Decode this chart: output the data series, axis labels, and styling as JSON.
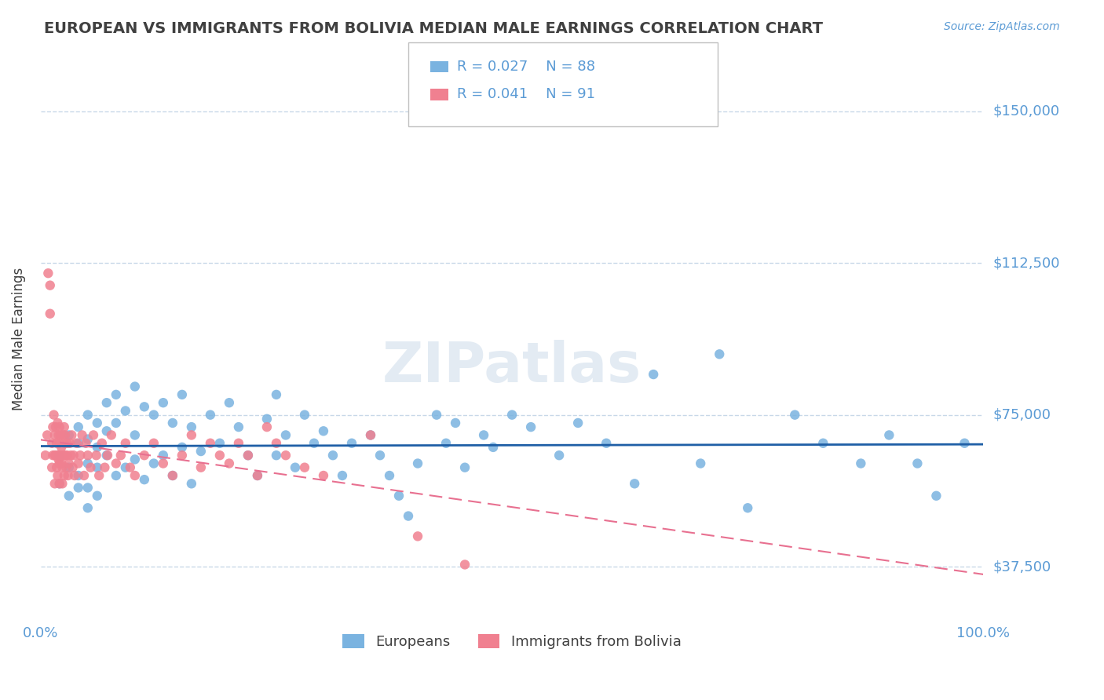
{
  "title": "EUROPEAN VS IMMIGRANTS FROM BOLIVIA MEDIAN MALE EARNINGS CORRELATION CHART",
  "source": "Source: ZipAtlas.com",
  "xlabel": "",
  "ylabel": "Median Male Earnings",
  "xlim": [
    0.0,
    1.0
  ],
  "ylim": [
    25000,
    162500
  ],
  "yticks": [
    37500,
    75000,
    112500,
    150000
  ],
  "ytick_labels": [
    "$37,500",
    "$75,000",
    "$112,500",
    "$150,000"
  ],
  "xtick_labels": [
    "0.0%",
    "100.0%"
  ],
  "background_color": "#ffffff",
  "grid_color": "#c8d8e8",
  "blue_color": "#5b9bd5",
  "pink_color": "#f4a0b0",
  "blue_scatter_color": "#7ab3e0",
  "pink_scatter_color": "#f08090",
  "legend_R1": "R = 0.027",
  "legend_N1": "N = 88",
  "legend_R2": "R = 0.041",
  "legend_N2": "N = 91",
  "legend_label1": "Europeans",
  "legend_label2": "Immigrants from Bolivia",
  "title_color": "#404040",
  "axis_label_color": "#5b9bd5",
  "watermark": "ZIPatlas",
  "europeans_x": [
    0.02,
    0.02,
    0.03,
    0.03,
    0.03,
    0.04,
    0.04,
    0.04,
    0.04,
    0.05,
    0.05,
    0.05,
    0.05,
    0.05,
    0.06,
    0.06,
    0.06,
    0.06,
    0.07,
    0.07,
    0.07,
    0.08,
    0.08,
    0.08,
    0.09,
    0.09,
    0.1,
    0.1,
    0.1,
    0.11,
    0.11,
    0.12,
    0.12,
    0.13,
    0.13,
    0.14,
    0.14,
    0.15,
    0.15,
    0.16,
    0.16,
    0.17,
    0.18,
    0.19,
    0.2,
    0.21,
    0.22,
    0.23,
    0.24,
    0.25,
    0.25,
    0.26,
    0.27,
    0.28,
    0.29,
    0.3,
    0.31,
    0.32,
    0.33,
    0.35,
    0.36,
    0.37,
    0.38,
    0.39,
    0.4,
    0.42,
    0.43,
    0.44,
    0.45,
    0.47,
    0.48,
    0.5,
    0.52,
    0.55,
    0.57,
    0.6,
    0.63,
    0.65,
    0.7,
    0.72,
    0.75,
    0.8,
    0.83,
    0.87,
    0.9,
    0.93,
    0.95,
    0.98
  ],
  "europeans_y": [
    65000,
    58000,
    70000,
    62000,
    55000,
    68000,
    72000,
    60000,
    57000,
    75000,
    69000,
    63000,
    57000,
    52000,
    73000,
    67000,
    62000,
    55000,
    78000,
    71000,
    65000,
    80000,
    73000,
    60000,
    76000,
    62000,
    82000,
    70000,
    64000,
    77000,
    59000,
    75000,
    63000,
    78000,
    65000,
    73000,
    60000,
    80000,
    67000,
    72000,
    58000,
    66000,
    75000,
    68000,
    78000,
    72000,
    65000,
    60000,
    74000,
    80000,
    65000,
    70000,
    62000,
    75000,
    68000,
    71000,
    65000,
    60000,
    68000,
    70000,
    65000,
    60000,
    55000,
    50000,
    63000,
    75000,
    68000,
    73000,
    62000,
    70000,
    67000,
    75000,
    72000,
    65000,
    73000,
    68000,
    58000,
    85000,
    63000,
    90000,
    52000,
    75000,
    68000,
    63000,
    70000,
    63000,
    55000,
    68000
  ],
  "bolivia_x": [
    0.005,
    0.007,
    0.008,
    0.01,
    0.01,
    0.012,
    0.012,
    0.013,
    0.013,
    0.014,
    0.015,
    0.015,
    0.015,
    0.016,
    0.016,
    0.017,
    0.017,
    0.018,
    0.018,
    0.018,
    0.019,
    0.019,
    0.02,
    0.02,
    0.02,
    0.02,
    0.021,
    0.021,
    0.022,
    0.022,
    0.023,
    0.023,
    0.024,
    0.024,
    0.025,
    0.025,
    0.025,
    0.026,
    0.026,
    0.027,
    0.028,
    0.028,
    0.029,
    0.03,
    0.031,
    0.032,
    0.033,
    0.034,
    0.035,
    0.036,
    0.038,
    0.04,
    0.042,
    0.044,
    0.046,
    0.048,
    0.05,
    0.053,
    0.056,
    0.059,
    0.062,
    0.065,
    0.068,
    0.071,
    0.075,
    0.08,
    0.085,
    0.09,
    0.095,
    0.1,
    0.11,
    0.12,
    0.13,
    0.14,
    0.15,
    0.16,
    0.17,
    0.18,
    0.19,
    0.2,
    0.21,
    0.22,
    0.23,
    0.24,
    0.25,
    0.26,
    0.28,
    0.3,
    0.35,
    0.4,
    0.45
  ],
  "bolivia_y": [
    65000,
    70000,
    110000,
    100000,
    107000,
    62000,
    68000,
    72000,
    65000,
    75000,
    65000,
    70000,
    58000,
    72000,
    65000,
    68000,
    62000,
    73000,
    65000,
    60000,
    70000,
    64000,
    68000,
    63000,
    58000,
    72000,
    65000,
    70000,
    63000,
    67000,
    62000,
    58000,
    70000,
    65000,
    68000,
    72000,
    60000,
    65000,
    70000,
    62000,
    65000,
    68000,
    60000,
    63000,
    68000,
    65000,
    70000,
    62000,
    65000,
    60000,
    68000,
    63000,
    65000,
    70000,
    60000,
    68000,
    65000,
    62000,
    70000,
    65000,
    60000,
    68000,
    62000,
    65000,
    70000,
    63000,
    65000,
    68000,
    62000,
    60000,
    65000,
    68000,
    63000,
    60000,
    65000,
    70000,
    62000,
    68000,
    65000,
    63000,
    68000,
    65000,
    60000,
    72000,
    68000,
    65000,
    62000,
    60000,
    70000,
    45000,
    38000
  ]
}
